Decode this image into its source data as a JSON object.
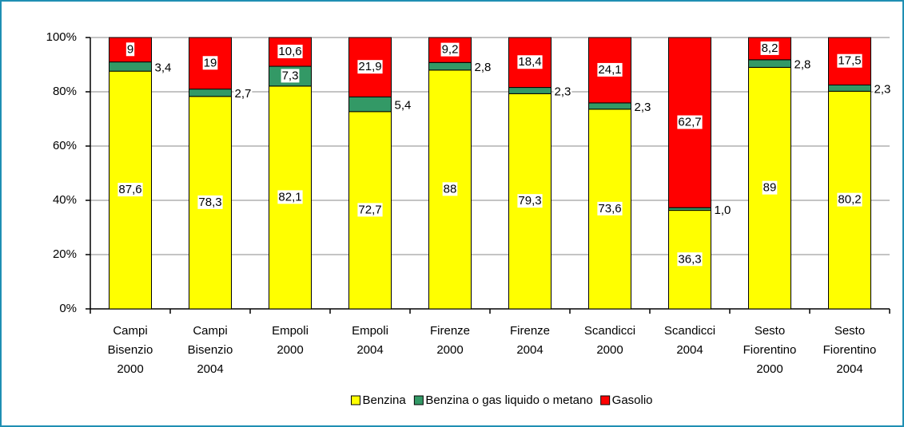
{
  "chart_data": {
    "type": "stacked_bar",
    "categories": [
      [
        "Campi",
        "Bisenzio",
        "2000"
      ],
      [
        "Campi",
        "Bisenzio",
        "2004"
      ],
      [
        "Empoli",
        "2000"
      ],
      [
        "Empoli",
        "2004"
      ],
      [
        "Firenze",
        "2000"
      ],
      [
        "Firenze",
        "2004"
      ],
      [
        "Scandicci",
        "2000"
      ],
      [
        "Scandicci",
        "2004"
      ],
      [
        "Sesto",
        "Fiorentino",
        "2000"
      ],
      [
        "Sesto",
        "Fiorentino",
        "2004"
      ]
    ],
    "series": [
      {
        "name": "Benzina",
        "color": "#ffff00",
        "values": [
          87.6,
          78.3,
          82.1,
          72.7,
          88,
          79.3,
          73.6,
          36.3,
          89,
          80.2
        ],
        "value_labels": [
          "87,6",
          "78,3",
          "82,1",
          "72,7",
          "88",
          "79,3",
          "73,6",
          "36,3",
          "89",
          "80,2"
        ]
      },
      {
        "name": "Benzina o gas liquido o metano",
        "color": "#339966",
        "values": [
          3.4,
          2.7,
          7.3,
          5.4,
          2.8,
          2.3,
          2.3,
          1.0,
          2.8,
          2.3
        ],
        "value_labels": [
          "3,4",
          "2,7",
          "7,3",
          "5,4",
          "2,8",
          "2,3",
          "2,3",
          "1,0",
          "2,8",
          "2,3"
        ]
      },
      {
        "name": "Gasolio",
        "color": "#ff0000",
        "values": [
          9,
          19,
          10.6,
          21.9,
          9.2,
          18.4,
          24.1,
          62.7,
          8.2,
          17.5
        ],
        "value_labels": [
          "9",
          "19",
          "10,6",
          "21,9",
          "9,2",
          "18,4",
          "24,1",
          "62,7",
          "8,2",
          "17,5"
        ]
      }
    ],
    "ylim": [
      0,
      100
    ],
    "yticks": [
      {
        "value": 0,
        "label": "0%"
      },
      {
        "value": 20,
        "label": "20%"
      },
      {
        "value": 40,
        "label": "40%"
      },
      {
        "value": 60,
        "label": "60%"
      },
      {
        "value": 80,
        "label": "80%"
      },
      {
        "value": 100,
        "label": "100%"
      }
    ],
    "grid": true,
    "legend": "bottom"
  }
}
